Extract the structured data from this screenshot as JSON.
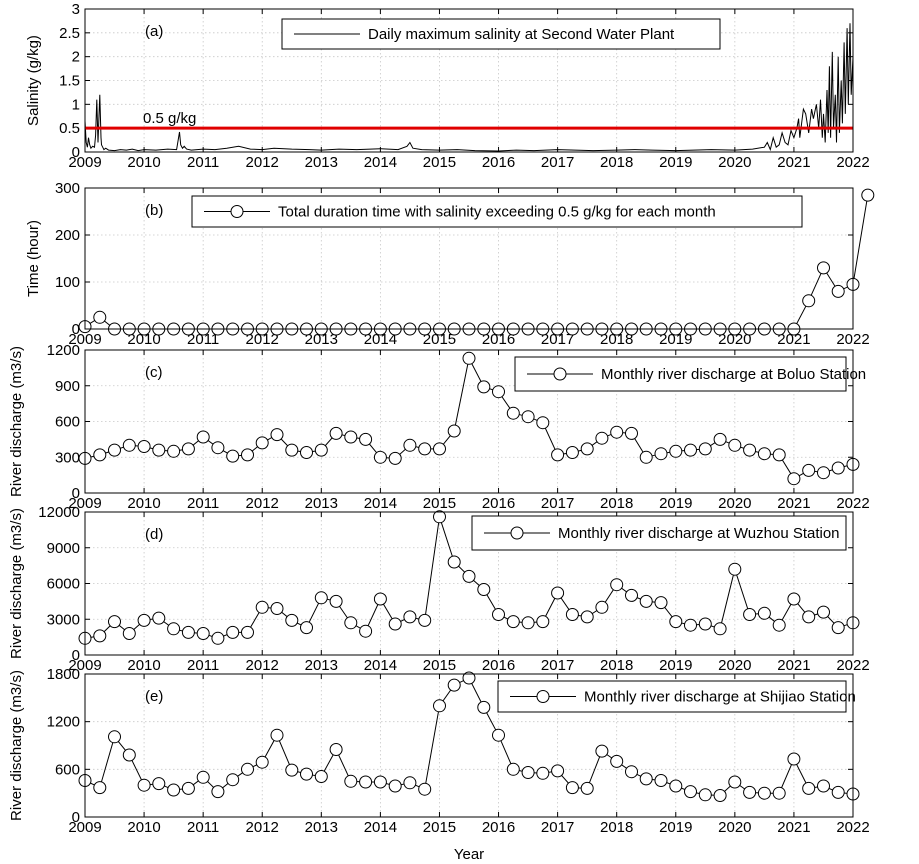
{
  "figure": {
    "xlabel": "Year",
    "x_ticks": [
      2009,
      2010,
      2011,
      2012,
      2013,
      2014,
      2015,
      2016,
      2017,
      2018,
      2019,
      2020,
      2021,
      2022
    ]
  },
  "chart_data": [
    {
      "type": "line",
      "panel": "(a)",
      "ylabel": "Salinity (g/kg)",
      "xlim": [
        2009,
        2022
      ],
      "ylim": [
        0,
        3
      ],
      "y_ticks": [
        "0",
        "0.5",
        "1",
        "1.5",
        "2",
        "2.5",
        "3"
      ],
      "legend": "Daily maximum salinity at Second Water Plant",
      "legend_position": "top",
      "grid": true,
      "threshold": {
        "value": 0.5,
        "label": "0.5 g/kg",
        "color": "#e00000"
      },
      "series": [
        {
          "color": "#000000",
          "x": [
            2009.0,
            2009.02,
            2009.04,
            2009.06,
            2009.08,
            2009.1,
            2009.13,
            2009.16,
            2009.18,
            2009.2,
            2009.22,
            2009.25,
            2009.27,
            2009.28,
            2009.3,
            2009.32,
            2009.35,
            2009.4,
            2009.5,
            2009.6,
            2009.7,
            2009.8,
            2009.9,
            2010.0,
            2010.2,
            2010.4,
            2010.55,
            2010.6,
            2010.62,
            2010.65,
            2010.68,
            2010.72,
            2010.8,
            2011.0,
            2011.2,
            2011.4,
            2011.6,
            2011.8,
            2012.0,
            2012.2,
            2012.5,
            2012.8,
            2013.0,
            2013.3,
            2013.6,
            2014.0,
            2014.3,
            2014.45,
            2014.5,
            2014.55,
            2014.7,
            2015.0,
            2015.3,
            2015.6,
            2016.0,
            2016.3,
            2016.6,
            2017.0,
            2017.3,
            2017.6,
            2018.0,
            2018.3,
            2018.6,
            2019.0,
            2019.3,
            2019.6,
            2020.0,
            2020.3,
            2020.5,
            2020.55,
            2020.6,
            2020.65,
            2020.7,
            2020.75,
            2020.8,
            2020.85,
            2020.9,
            2020.95,
            2021.0,
            2021.05,
            2021.08,
            2021.1,
            2021.13,
            2021.16,
            2021.2,
            2021.25,
            2021.3,
            2021.33,
            2021.38,
            2021.42,
            2021.45,
            2021.48,
            2021.5,
            2021.53,
            2021.56,
            2021.58,
            2021.6,
            2021.62,
            2021.65,
            2021.67,
            2021.7,
            2021.72,
            2021.75,
            2021.77,
            2021.8,
            2021.82,
            2021.85,
            2021.87,
            2021.9,
            2021.92,
            2021.95,
            2021.97,
            2022.0
          ],
          "y": [
            0.65,
            0.2,
            0.1,
            0.3,
            0.15,
            0.08,
            0.12,
            0.1,
            0.35,
            1.1,
            0.2,
            1.2,
            0.3,
            0.15,
            0.1,
            0.05,
            0.08,
            0.04,
            0.03,
            0.05,
            0.04,
            0.06,
            0.03,
            0.05,
            0.04,
            0.06,
            0.05,
            0.42,
            0.15,
            0.08,
            0.12,
            0.06,
            0.04,
            0.06,
            0.05,
            0.08,
            0.12,
            0.06,
            0.05,
            0.08,
            0.06,
            0.05,
            0.04,
            0.06,
            0.05,
            0.07,
            0.05,
            0.12,
            0.2,
            0.08,
            0.05,
            0.04,
            0.05,
            0.03,
            0.02,
            0.04,
            0.03,
            0.05,
            0.04,
            0.03,
            0.04,
            0.05,
            0.04,
            0.03,
            0.04,
            0.05,
            0.04,
            0.06,
            0.1,
            0.2,
            0.05,
            0.3,
            0.1,
            0.15,
            0.4,
            0.2,
            0.15,
            0.45,
            0.3,
            0.5,
            0.7,
            0.3,
            0.6,
            0.9,
            0.8,
            0.4,
            0.9,
            0.7,
            1.0,
            0.5,
            1.1,
            0.3,
            0.8,
            0.2,
            1.3,
            0.4,
            1.8,
            0.3,
            2.1,
            0.5,
            1.2,
            0.2,
            2.0,
            0.4,
            1.5,
            0.6,
            2.3,
            0.8,
            2.6,
            1.0,
            2.7,
            1.2,
            2.0
          ]
        }
      ]
    },
    {
      "type": "line",
      "panel": "(b)",
      "ylabel": "Time (hour)",
      "xlim": [
        2009,
        2022
      ],
      "ylim": [
        0,
        300
      ],
      "y_ticks": [
        "0",
        "100",
        "200",
        "300"
      ],
      "legend": "Total duration time with salinity exceeding 0.5 g/kg for each month",
      "legend_position": "top",
      "grid": true,
      "marker": "circle",
      "series": [
        {
          "x_start": 2009.0,
          "x_step": 0.25,
          "y": [
            5,
            25,
            0,
            0,
            0,
            0,
            0,
            0,
            0,
            0,
            0,
            0,
            0,
            0,
            0,
            0,
            0,
            0,
            0,
            0,
            0,
            0,
            0,
            0,
            0,
            0,
            0,
            0,
            0,
            0,
            0,
            0,
            0,
            0,
            0,
            0,
            0,
            0,
            0,
            0,
            0,
            0,
            0,
            0,
            0,
            0,
            0,
            0,
            0,
            60,
            130,
            80,
            95,
            285
          ]
        }
      ]
    },
    {
      "type": "line",
      "panel": "(c)",
      "ylabel": "River discharge (m3/s)",
      "xlim": [
        2009,
        2022
      ],
      "ylim": [
        0,
        1200
      ],
      "y_ticks": [
        "0",
        "300",
        "600",
        "900",
        "1200"
      ],
      "legend": "Monthly river discharge at Boluo Station",
      "legend_position": "top-right",
      "grid": true,
      "marker": "circle",
      "series": [
        {
          "x_start": 2009.0,
          "x_step": 0.25,
          "y": [
            290,
            320,
            360,
            400,
            390,
            360,
            350,
            370,
            470,
            380,
            310,
            320,
            420,
            490,
            360,
            340,
            360,
            500,
            470,
            450,
            300,
            290,
            400,
            370,
            370,
            520,
            1130,
            890,
            850,
            670,
            640,
            590,
            320,
            340,
            370,
            460,
            510,
            500,
            300,
            330,
            350,
            360,
            370,
            450,
            400,
            360,
            330,
            320,
            120,
            190,
            170,
            210,
            240
          ]
        }
      ]
    },
    {
      "type": "line",
      "panel": "(d)",
      "ylabel": "River discharge (m3/s)",
      "xlim": [
        2009,
        2022
      ],
      "ylim": [
        0,
        12000
      ],
      "y_ticks": [
        "0",
        "3000",
        "6000",
        "9000",
        "12000"
      ],
      "legend": "Monthly river discharge at Wuzhou Station",
      "legend_position": "top-right",
      "grid": true,
      "marker": "circle",
      "series": [
        {
          "x_start": 2009.0,
          "x_step": 0.25,
          "y": [
            1400,
            1600,
            2800,
            1800,
            2900,
            3100,
            2200,
            1900,
            1800,
            1400,
            1900,
            1900,
            4000,
            3900,
            2900,
            2300,
            4800,
            4500,
            2700,
            2000,
            4700,
            2600,
            3200,
            2900,
            11600,
            7800,
            6600,
            5500,
            3400,
            2800,
            2700,
            2800,
            5200,
            3400,
            3200,
            4000,
            5900,
            5000,
            4500,
            4400,
            2800,
            2500,
            2600,
            2200,
            7200,
            3400,
            3500,
            2500,
            4700,
            3200,
            3600,
            2300,
            2700
          ]
        }
      ]
    },
    {
      "type": "line",
      "panel": "(e)",
      "ylabel": "River discharge (m3/s)",
      "xlim": [
        2009,
        2022
      ],
      "ylim": [
        0,
        1800
      ],
      "y_ticks": [
        "0",
        "600",
        "1200",
        "1800"
      ],
      "legend": "Monthly river discharge at Shijiao Station",
      "legend_position": "top-right",
      "grid": true,
      "marker": "circle",
      "series": [
        {
          "x_start": 2009.0,
          "x_step": 0.25,
          "y": [
            460,
            370,
            1010,
            780,
            400,
            420,
            340,
            360,
            500,
            320,
            470,
            600,
            690,
            1030,
            590,
            540,
            510,
            850,
            450,
            440,
            440,
            390,
            430,
            350,
            1400,
            1660,
            1750,
            1380,
            1030,
            600,
            560,
            550,
            580,
            370,
            360,
            830,
            700,
            570,
            480,
            460,
            390,
            320,
            280,
            270,
            440,
            310,
            300,
            300,
            730,
            360,
            390,
            310,
            290
          ]
        }
      ]
    }
  ]
}
